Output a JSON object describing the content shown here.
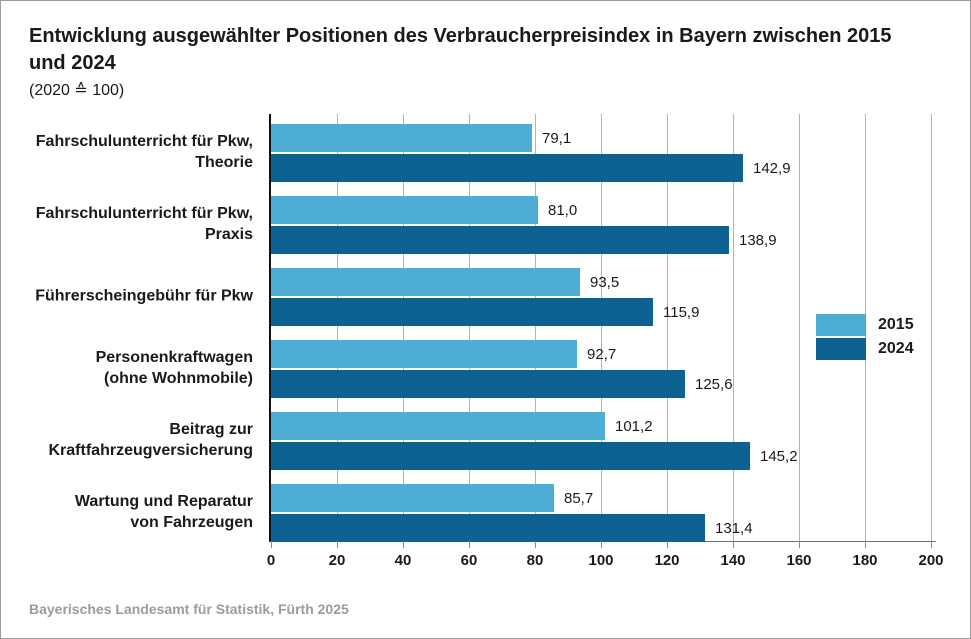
{
  "title": {
    "text": "Entwicklung ausgewählter Positionen des Verbraucherpreisindex in Bayern zwischen 2015 und 2024",
    "subtitle": "(2020 ≙ 100)"
  },
  "footer": {
    "source": "Bayerisches Landesamt für Statistik, Fürth 2025"
  },
  "chart_data": {
    "type": "bar",
    "orientation": "horizontal",
    "title": "Entwicklung ausgewählter Positionen des Verbraucherpreisindex in Bayern zwischen 2015 und 2024",
    "subtitle": "(2020 ≙ 100)",
    "categories": [
      "Fahrschulunterricht für Pkw,\nTheorie",
      "Fahrschulunterricht für Pkw,\nPraxis",
      "Führerscheingebühr für Pkw",
      "Personenkraftwagen\n(ohne Wohnmobile)",
      "Beitrag zur\nKraftfahrzeugversicherung",
      "Wartung und Reparatur\nvon Fahrzeugen"
    ],
    "series": [
      {
        "name": "2015",
        "color": "#4dadd2",
        "values": [
          79.1,
          81.0,
          93.5,
          92.7,
          101.2,
          85.7
        ],
        "value_labels": [
          "79,1",
          "81,0",
          "93,5",
          "92,7",
          "101,2",
          "85,7"
        ]
      },
      {
        "name": "2024",
        "color": "#0c6290",
        "values": [
          142.9,
          138.9,
          115.9,
          125.6,
          145.2,
          131.4
        ],
        "value_labels": [
          "142,9",
          "138,9",
          "115,9",
          "125,6",
          "145,2",
          "131,4"
        ]
      }
    ],
    "xlim": [
      0,
      200
    ],
    "xticks": [
      0,
      20,
      40,
      60,
      80,
      100,
      120,
      140,
      160,
      180,
      200
    ],
    "grid": true,
    "legend_position": "right",
    "gridline_color": "#b4b4b4"
  }
}
